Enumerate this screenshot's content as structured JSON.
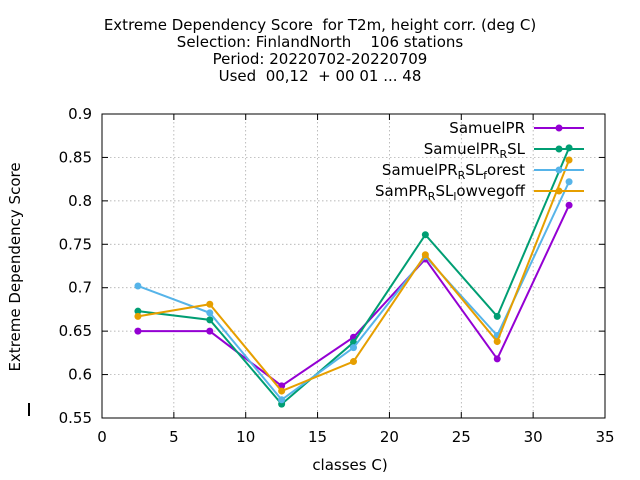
{
  "chart_data": {
    "type": "line",
    "title_lines": [
      "Extreme Dependency Score  for T2m, height corr. (deg C)",
      "Selection: FinlandNorth    106 stations",
      "Period: 20220702-20220709",
      "Used  00,12  + 00 01 ... 48"
    ],
    "xlabel": "classes C)",
    "ylabel": "Extreme Dependency Score",
    "xlim": [
      0,
      35
    ],
    "ylim": [
      0.55,
      0.9
    ],
    "xticks": [
      "0",
      "5",
      "10",
      "15",
      "20",
      "25",
      "30",
      "35"
    ],
    "yticks": [
      "0.55",
      "0.6",
      "0.65",
      "0.7",
      "0.75",
      "0.8",
      "0.85",
      "0.9"
    ],
    "grid": true,
    "legend_position": "top-right",
    "x": [
      2.5,
      7.5,
      12.5,
      17.5,
      22.5,
      27.5,
      32.5
    ],
    "series": [
      {
        "name": "SamuelPR",
        "legend": [
          {
            "t": "SamuelPR"
          }
        ],
        "color": "#9400d3",
        "values": [
          0.65,
          0.65,
          0.587,
          0.643,
          0.733,
          0.618,
          0.795
        ]
      },
      {
        "name": "SamuelPR_R SL",
        "legend": [
          {
            "t": "SamuelPR"
          },
          {
            "t": "R",
            "sub": true
          },
          {
            "t": "SL"
          }
        ],
        "color": "#009e73",
        "values": [
          0.673,
          0.663,
          0.566,
          0.637,
          0.761,
          0.667,
          0.861
        ]
      },
      {
        "name": "SamuelPR_R SL_f orest",
        "legend": [
          {
            "t": "SamuelPR"
          },
          {
            "t": "R",
            "sub": true
          },
          {
            "t": "SL"
          },
          {
            "t": "f",
            "sub": true
          },
          {
            "t": "orest"
          }
        ],
        "color": "#56b4e9",
        "values": [
          0.702,
          0.671,
          0.571,
          0.631,
          0.736,
          0.645,
          0.822
        ]
      },
      {
        "name": "SamPR_R SL_l owvegoff",
        "legend": [
          {
            "t": "SamPR"
          },
          {
            "t": "R",
            "sub": true
          },
          {
            "t": "SL"
          },
          {
            "t": "l",
            "sub": true
          },
          {
            "t": "owvegoff"
          }
        ],
        "color": "#e69f00",
        "values": [
          0.667,
          0.681,
          0.581,
          0.615,
          0.738,
          0.638,
          0.847
        ]
      }
    ]
  }
}
